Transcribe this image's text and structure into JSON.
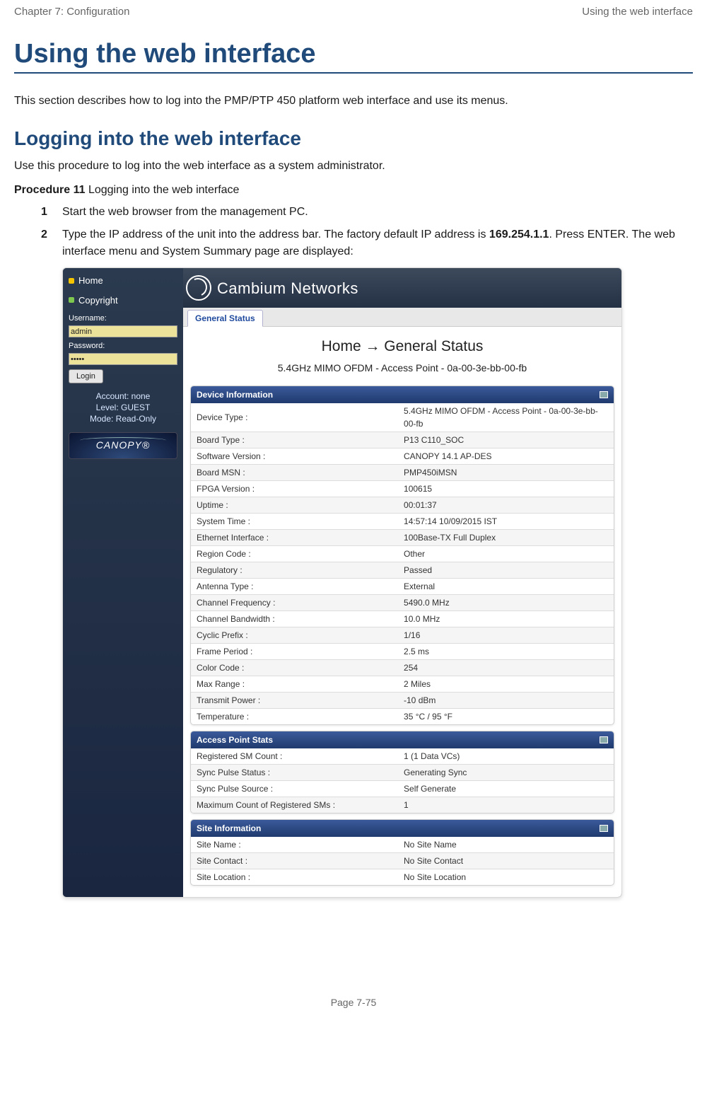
{
  "header": {
    "left": "Chapter 7:  Configuration",
    "right": "Using the web interface"
  },
  "title": "Using the web interface",
  "intro": "This section describes how to log into the PMP/PTP 450 platform web interface and use its menus.",
  "sub": "Logging into the web interface",
  "sub_para": "Use this procedure to log into the web interface as a system administrator.",
  "procedure_bold": "Procedure 11",
  "procedure_rest": " Logging into the web interface",
  "steps": {
    "s1": "Start the web browser from the management PC.",
    "s2a": "Type the IP address of the unit into the address bar. The factory default IP address is ",
    "s2_ip": "169.254.1.1",
    "s2b": ". Press ENTER. The web interface menu and System Summary page are displayed:"
  },
  "ui": {
    "brand": "Cambium Networks",
    "nav": {
      "home": "Home",
      "copyright": "Copyright"
    },
    "username_label": "Username:",
    "username_value": "admin",
    "password_label": "Password:",
    "password_value": "•••••",
    "login_btn": "Login",
    "account_line1": "Account: none",
    "account_line2": "Level: GUEST",
    "account_line3": "Mode: Read-Only",
    "canopy": "CANOPY®",
    "tab": "General Status",
    "page_header": "Home → General Status",
    "page_sub": "5.4GHz MIMO OFDM - Access Point - 0a-00-3e-bb-00-fb",
    "panel1": "Device Information",
    "panel2": "Access Point Stats",
    "panel3": "Site Information",
    "device_rows": [
      [
        "Device Type :",
        "5.4GHz MIMO OFDM - Access Point - 0a-00-3e-bb-00-fb"
      ],
      [
        "Board Type :",
        "P13 C110_SOC"
      ],
      [
        "Software Version :",
        "CANOPY 14.1 AP-DES"
      ],
      [
        "Board MSN :",
        "PMP450iMSN"
      ],
      [
        "FPGA Version :",
        "100615"
      ],
      [
        "Uptime :",
        "00:01:37"
      ],
      [
        "System Time :",
        "14:57:14 10/09/2015 IST"
      ],
      [
        "Ethernet Interface :",
        "100Base-TX Full Duplex"
      ],
      [
        "Region Code :",
        "Other"
      ],
      [
        "Regulatory :",
        "Passed"
      ],
      [
        "Antenna Type :",
        "External"
      ],
      [
        "Channel Frequency :",
        "5490.0 MHz"
      ],
      [
        "Channel Bandwidth :",
        "10.0 MHz"
      ],
      [
        "Cyclic Prefix :",
        "1/16"
      ],
      [
        "Frame Period :",
        "2.5 ms"
      ],
      [
        "Color Code :",
        "254"
      ],
      [
        "Max Range :",
        "2 Miles"
      ],
      [
        "Transmit Power :",
        "-10 dBm"
      ],
      [
        "Temperature :",
        "35 °C / 95 °F"
      ]
    ],
    "ap_rows": [
      [
        "Registered SM Count :",
        "1 (1 Data VCs)"
      ],
      [
        "Sync Pulse Status :",
        "Generating Sync"
      ],
      [
        "Sync Pulse Source :",
        "Self Generate"
      ],
      [
        "Maximum Count of Registered SMs :",
        "1"
      ]
    ],
    "site_rows": [
      [
        "Site Name :",
        "No Site Name"
      ],
      [
        "Site Contact :",
        "No Site Contact"
      ],
      [
        "Site Location :",
        "No Site Location"
      ]
    ]
  },
  "footer": "Page 7-75",
  "colors": {
    "heading": "#1f4a7a",
    "panel_head_top": "#3b5a9a",
    "panel_head_bottom": "#1f3a6e",
    "sidebar_top": "#2b3a4e",
    "sidebar_bottom": "#1a2640",
    "input_bg": "#ece29a"
  }
}
